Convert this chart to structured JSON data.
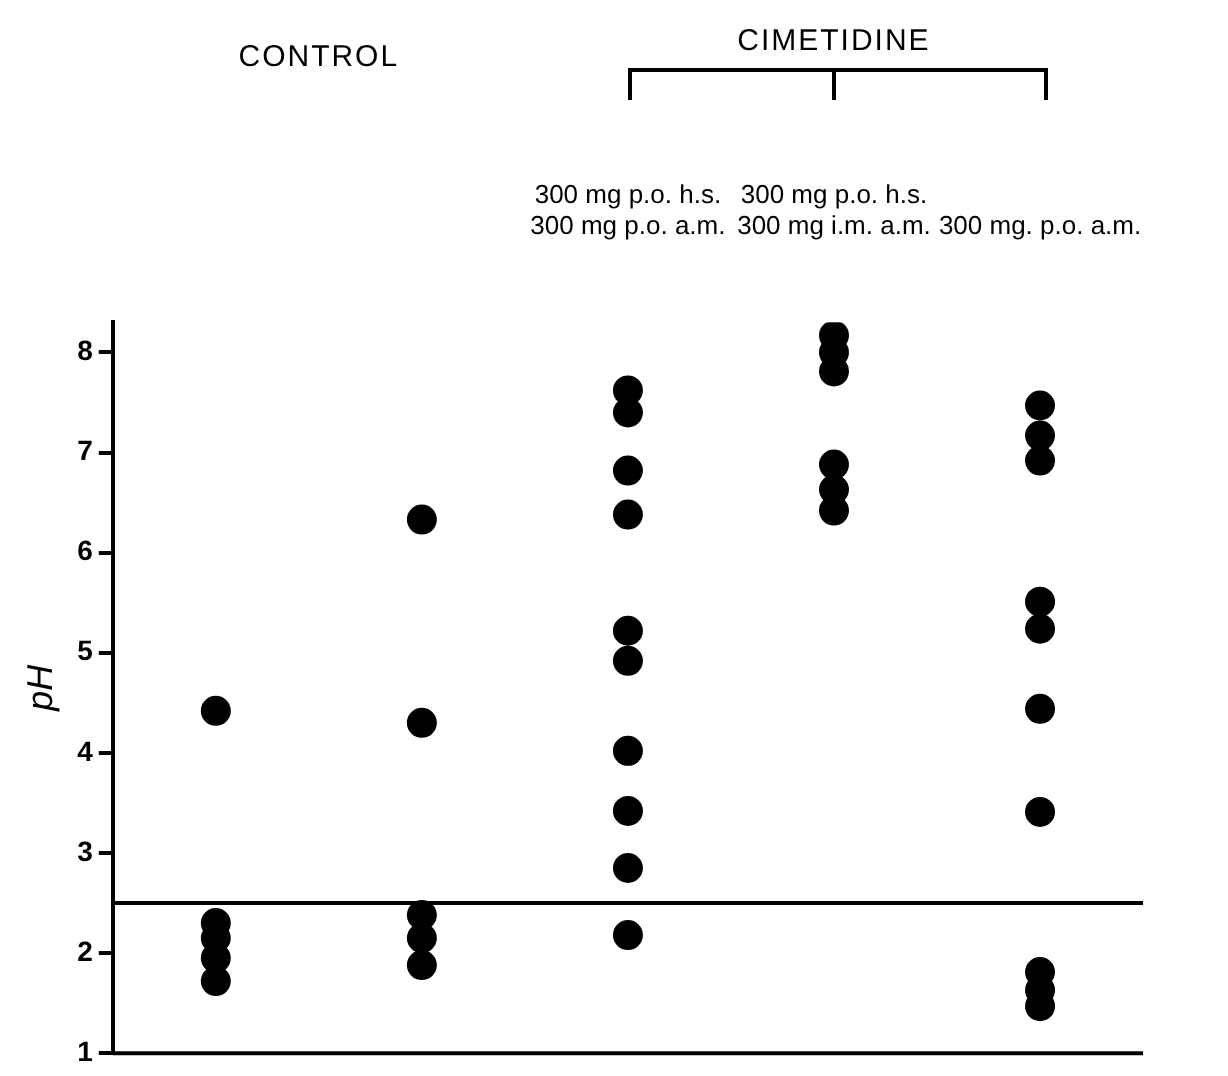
{
  "chart_data": {
    "type": "scatter",
    "categories": [
      null,
      null,
      "300 mg p.o. h.s.\n300 mg p.o. a.m.",
      "300 mg p.o. h.s.\n300 mg i.m. a.m.",
      "300 mg. p.o. a.m."
    ],
    "ylabel": "pH",
    "annotations": [
      "CONTROL",
      "CIMETIDINE"
    ],
    "series": [
      {
        "color": "#000000",
        "values": [
          4.42,
          6.33,
          7.62,
          8.17,
          7.47
        ]
      },
      {
        "color": "#000000",
        "values": [
          2.3,
          4.3,
          7.4,
          8.0,
          7.17
        ]
      },
      {
        "color": "#000000",
        "values": [
          2.15,
          2.38,
          6.82,
          7.81,
          6.92
        ]
      },
      {
        "color": "#000000",
        "values": [
          1.95,
          2.15,
          6.38,
          6.88,
          5.51
        ]
      },
      {
        "color": "#000000",
        "values": [
          1.72,
          1.88,
          5.22,
          6.63,
          5.24
        ]
      },
      {
        "color": "#000000",
        "values": [
          null,
          null,
          4.92,
          6.42,
          4.44
        ]
      },
      {
        "color": "#000000",
        "values": [
          null,
          null,
          4.02,
          null,
          3.41
        ]
      },
      {
        "color": "#000000",
        "values": [
          null,
          null,
          3.42,
          null,
          1.81
        ]
      },
      {
        "color": "#000000",
        "values": [
          null,
          null,
          2.85,
          null,
          1.63
        ]
      },
      {
        "color": "#000000",
        "values": [
          null,
          null,
          2.18,
          null,
          1.47
        ]
      }
    ],
    "ylim": [
      1,
      8.3
    ],
    "yticks": [
      1,
      2,
      3,
      4,
      5,
      6,
      7,
      8
    ],
    "ref_lines": [
      {
        "axis": "y",
        "value": 2.5,
        "color": "#000000"
      }
    ],
    "grid": false,
    "legend": false,
    "marker": "circle"
  }
}
